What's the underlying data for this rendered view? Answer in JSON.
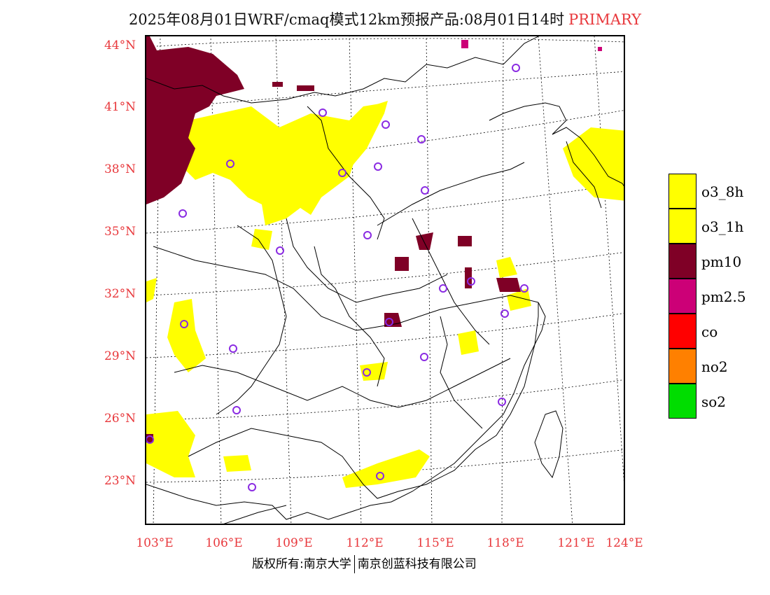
{
  "header": {
    "title": "2025年08月01日WRF/cmaq模式12km预报产品:08月01日14时",
    "tag": "PRIMARY"
  },
  "map": {
    "lat_labels": [
      "44°N",
      "41°N",
      "38°N",
      "35°N",
      "32°N",
      "29°N",
      "26°N",
      "23°N"
    ],
    "lon_labels": [
      "103°E",
      "106°E",
      "109°E",
      "112°E",
      "115°E",
      "118°E",
      "121°E",
      "124°E"
    ]
  },
  "legend": {
    "items": [
      {
        "label": "o3_8h",
        "color": "#ffff00"
      },
      {
        "label": "o3_1h",
        "color": "#ffff00"
      },
      {
        "label": "pm10",
        "color": "#7f0026"
      },
      {
        "label": "pm2.5",
        "color": "#cc0077"
      },
      {
        "label": "co",
        "color": "#ff0000"
      },
      {
        "label": "no2",
        "color": "#ff8000"
      },
      {
        "label": "so2",
        "color": "#00dd00"
      }
    ]
  },
  "footer": {
    "left": "版权所有:南京大学",
    "right": "南京创蓝科技有限公司"
  },
  "colors": {
    "label_red": "#e8383c",
    "station_circle": "#8a2be2",
    "o3": "#ffff00",
    "pm10": "#7f0026",
    "pm25": "#cc0077"
  }
}
